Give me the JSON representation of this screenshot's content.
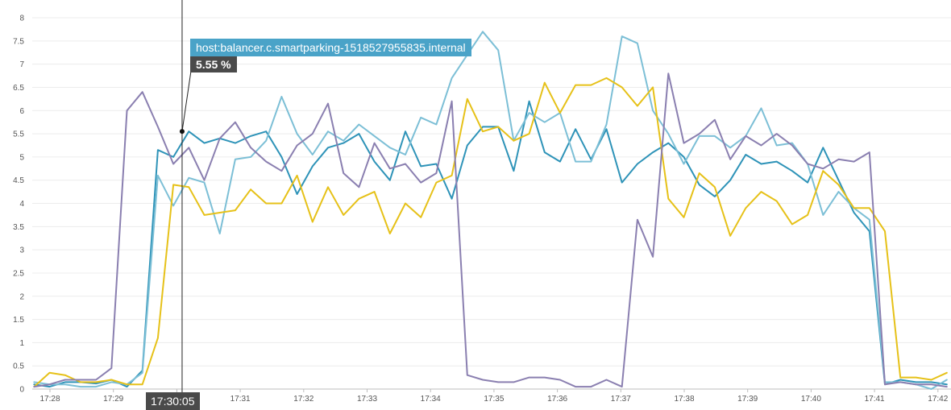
{
  "chart_data": {
    "type": "line",
    "y_ticks": [
      "0",
      "0.5",
      "1",
      "1.5",
      "2",
      "2.5",
      "3",
      "3.5",
      "4",
      "4.5",
      "5",
      "5.5",
      "6",
      "6.5",
      "7",
      "7.5",
      "8"
    ],
    "ylim": [
      0,
      8
    ],
    "x_ticks": [
      {
        "label": "17:28",
        "t": 0.0
      },
      {
        "label": "17:29",
        "t": 1.0
      },
      {
        "label": "17:30",
        "t": 2.0
      },
      {
        "label": "17:31",
        "t": 3.0
      },
      {
        "label": "17:32",
        "t": 4.0
      },
      {
        "label": "17:33",
        "t": 5.0
      },
      {
        "label": "17:34",
        "t": 6.0
      },
      {
        "label": "17:35",
        "t": 7.0
      },
      {
        "label": "17:36",
        "t": 8.0
      },
      {
        "label": "17:37",
        "t": 9.0
      },
      {
        "label": "17:38",
        "t": 10.0
      },
      {
        "label": "17:39",
        "t": 11.0
      },
      {
        "label": "17:40",
        "t": 12.0
      },
      {
        "label": "17:41",
        "t": 13.0
      },
      {
        "label": "17:42",
        "t": 14.0
      }
    ],
    "xlim": [
      -0.25,
      14.14
    ],
    "grid": true,
    "series": [
      {
        "color": "#2e93b8",
        "values": [
          0.1,
          0.05,
          0.15,
          0.15,
          0.12,
          0.2,
          0.05,
          0.4,
          5.15,
          5.0,
          5.55,
          5.3,
          5.4,
          5.3,
          5.45,
          5.55,
          5.0,
          4.2,
          4.8,
          5.2,
          5.3,
          5.5,
          4.9,
          4.5,
          5.55,
          4.8,
          4.85,
          4.1,
          5.25,
          5.65,
          5.65,
          4.7,
          6.2,
          5.1,
          4.9,
          5.6,
          4.95,
          5.6,
          4.45,
          4.85,
          5.1,
          5.3,
          5.0,
          4.4,
          4.15,
          4.5,
          5.05,
          4.85,
          4.9,
          4.7,
          4.45,
          5.2,
          4.5,
          3.8,
          3.4,
          0.1,
          0.2,
          0.15,
          0.15,
          0.1
        ]
      },
      {
        "color": "#7cbfd6",
        "values": [
          0.15,
          0.1,
          0.1,
          0.05,
          0.05,
          0.15,
          0.1,
          0.35,
          4.6,
          3.95,
          4.55,
          4.45,
          3.35,
          4.95,
          5.0,
          5.35,
          6.3,
          5.5,
          5.05,
          5.55,
          5.35,
          5.7,
          5.45,
          5.2,
          5.05,
          5.85,
          5.7,
          6.7,
          7.2,
          7.7,
          7.3,
          5.35,
          5.95,
          5.75,
          5.95,
          4.9,
          4.9,
          5.7,
          7.6,
          7.45,
          6.0,
          5.5,
          4.85,
          5.45,
          5.45,
          5.2,
          5.45,
          6.05,
          5.25,
          5.3,
          4.85,
          3.75,
          4.25,
          3.9,
          3.65,
          0.15,
          0.15,
          0.1,
          0.0,
          0.2
        ]
      },
      {
        "color": "#e6c118",
        "values": [
          0.05,
          0.35,
          0.3,
          0.15,
          0.15,
          0.2,
          0.1,
          0.1,
          1.1,
          4.4,
          4.35,
          3.75,
          3.8,
          3.85,
          4.3,
          4.0,
          4.0,
          4.6,
          3.6,
          4.35,
          3.75,
          4.1,
          4.25,
          3.35,
          4.0,
          3.7,
          4.45,
          4.6,
          6.25,
          5.55,
          5.65,
          5.35,
          5.5,
          6.6,
          5.95,
          6.55,
          6.55,
          6.7,
          6.5,
          6.1,
          6.5,
          4.1,
          3.7,
          4.65,
          4.35,
          3.3,
          3.9,
          4.25,
          4.05,
          3.55,
          3.75,
          4.7,
          4.4,
          3.9,
          3.9,
          3.4,
          0.25,
          0.25,
          0.2,
          0.35
        ]
      },
      {
        "color": "#8a7fb0",
        "values": [
          0.05,
          0.1,
          0.2,
          0.2,
          0.2,
          0.45,
          6.0,
          6.4,
          5.65,
          4.85,
          5.2,
          4.5,
          5.4,
          5.75,
          5.2,
          4.9,
          4.7,
          5.25,
          5.5,
          6.15,
          4.65,
          4.35,
          5.3,
          4.75,
          4.85,
          4.45,
          4.65,
          6.2,
          0.3,
          0.2,
          0.15,
          0.15,
          0.25,
          0.25,
          0.2,
          0.05,
          0.05,
          0.2,
          0.05,
          3.65,
          2.85,
          6.8,
          5.3,
          5.5,
          5.8,
          4.95,
          5.45,
          5.25,
          5.5,
          5.25,
          4.85,
          4.75,
          4.95,
          4.9,
          5.1,
          0.1,
          0.15,
          0.1,
          0.1,
          0.05
        ]
      }
    ]
  },
  "tooltip": {
    "host": "host:balancer.c.smartparking-1518527955835.internal",
    "value": "5.55 %"
  },
  "crosshair": {
    "time_label": "17:30:05",
    "t": 2.0833,
    "y": 5.55,
    "color": "#2e93b8"
  }
}
